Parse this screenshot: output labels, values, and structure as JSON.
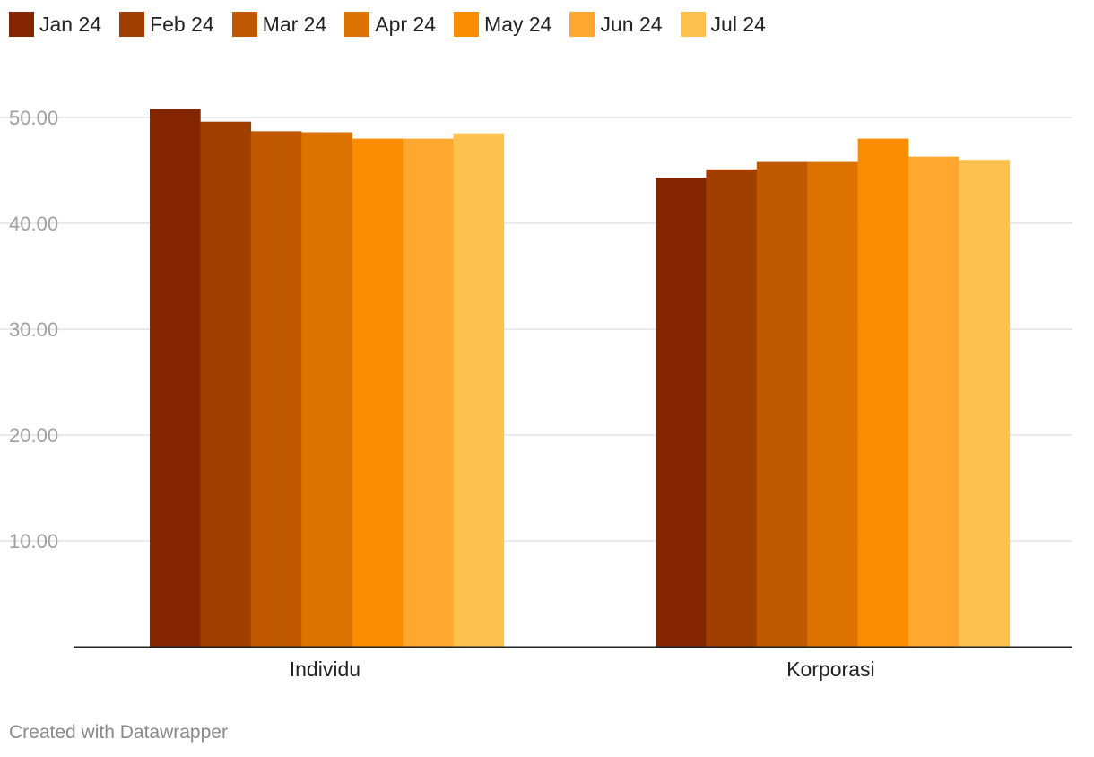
{
  "footer": {
    "credit": "Created with Datawrapper"
  },
  "chart_data": {
    "type": "bar",
    "title": "",
    "xlabel": "",
    "ylabel": "",
    "categories": [
      "Individu",
      "Korporasi"
    ],
    "series": [
      {
        "name": "Jan 24",
        "color": "#832600",
        "values": [
          50.8,
          44.3
        ]
      },
      {
        "name": "Feb 24",
        "color": "#a13f00",
        "values": [
          49.6,
          45.1
        ]
      },
      {
        "name": "Mar 24",
        "color": "#bf5800",
        "values": [
          48.7,
          45.8
        ]
      },
      {
        "name": "Apr 24",
        "color": "#dc7200",
        "values": [
          48.6,
          45.8
        ]
      },
      {
        "name": "May 24",
        "color": "#fa8c00",
        "values": [
          48.0,
          48.0
        ]
      },
      {
        "name": "Jun 24",
        "color": "#ffa72e",
        "values": [
          48.0,
          46.3
        ]
      },
      {
        "name": "Jul 24",
        "color": "#ffc14e",
        "values": [
          48.5,
          46.0
        ]
      }
    ],
    "ylim": [
      0,
      55
    ],
    "yticks": [
      10,
      20,
      30,
      40,
      50
    ],
    "ytick_labels": [
      "10.00",
      "20.00",
      "30.00",
      "40.00",
      "50.00"
    ],
    "grid": true,
    "legend_position": "top-left"
  }
}
